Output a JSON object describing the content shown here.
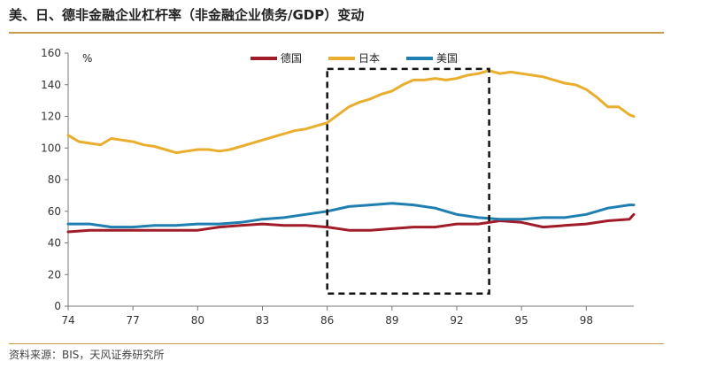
{
  "header": {
    "title": "美、日、德非金融企业杠杆率（非金融企业债务/GDP）变动"
  },
  "footer": {
    "source": "资料来源：BIS，天风证券研究所"
  },
  "chart_data": {
    "type": "line",
    "title": "美、日、德非金融企业杠杆率（非金融企业债务/GDP）变动",
    "ylabel": "%",
    "xlabel": "",
    "xlim": [
      74,
      100.2
    ],
    "ylim": [
      0,
      160
    ],
    "xticks": [
      74,
      77,
      80,
      83,
      86,
      89,
      92,
      95,
      98
    ],
    "xtick_labels": [
      "74",
      "77",
      "80",
      "83",
      "86",
      "89",
      "92",
      "95",
      "98"
    ],
    "yticks": [
      0,
      20,
      40,
      60,
      80,
      100,
      120,
      140,
      160
    ],
    "legend": {
      "placement": "top-center"
    },
    "grid": false,
    "highlight_box": {
      "x": [
        86,
        93.5
      ],
      "y": [
        8,
        150
      ],
      "style": "dashed"
    },
    "series": [
      {
        "name": "德国",
        "color": "#a01c28",
        "x": [
          74,
          75,
          76,
          77,
          78,
          79,
          80,
          81,
          82,
          83,
          84,
          85,
          86,
          87,
          88,
          89,
          90,
          91,
          92,
          93,
          94,
          95,
          96,
          97,
          98,
          99,
          100,
          100.2
        ],
        "values": [
          47,
          48,
          48,
          48,
          48,
          48,
          48,
          50,
          51,
          52,
          51,
          51,
          50,
          48,
          48,
          49,
          50,
          50,
          52,
          52,
          54,
          53,
          50,
          51,
          52,
          54,
          55,
          58
        ]
      },
      {
        "name": "日本",
        "color": "#e9ae2e",
        "x": [
          74,
          74.5,
          75,
          75.5,
          76,
          76.5,
          77,
          77.5,
          78,
          78.5,
          79,
          79.5,
          80,
          80.5,
          81,
          81.5,
          82,
          82.5,
          83,
          83.5,
          84,
          84.5,
          85,
          85.5,
          86,
          86.5,
          87,
          87.5,
          88,
          88.5,
          89,
          89.5,
          90,
          90.5,
          91,
          91.5,
          92,
          92.5,
          93,
          93.5,
          94,
          94.5,
          95,
          95.5,
          96,
          96.5,
          97,
          97.5,
          98,
          98.5,
          99,
          99.5,
          100,
          100.2
        ],
        "values": [
          108,
          104,
          103,
          102,
          106,
          105,
          104,
          102,
          101,
          99,
          97,
          98,
          99,
          99,
          98,
          99,
          101,
          103,
          105,
          107,
          109,
          111,
          112,
          114,
          116,
          121,
          126,
          129,
          131,
          134,
          136,
          140,
          143,
          143,
          144,
          143,
          144,
          146,
          147,
          149,
          147,
          148,
          147,
          146,
          145,
          143,
          141,
          140,
          137,
          132,
          126,
          126,
          121,
          120
        ]
      },
      {
        "name": "美国",
        "color": "#1f7fb0",
        "x": [
          74,
          75,
          76,
          77,
          78,
          79,
          80,
          81,
          82,
          83,
          84,
          85,
          86,
          87,
          88,
          89,
          90,
          91,
          92,
          93,
          94,
          95,
          96,
          97,
          98,
          99,
          100,
          100.2
        ],
        "values": [
          52,
          52,
          50,
          50,
          51,
          51,
          52,
          52,
          53,
          55,
          56,
          58,
          60,
          63,
          64,
          65,
          64,
          62,
          58,
          56,
          55,
          55,
          56,
          56,
          58,
          62,
          64,
          64
        ]
      }
    ]
  }
}
